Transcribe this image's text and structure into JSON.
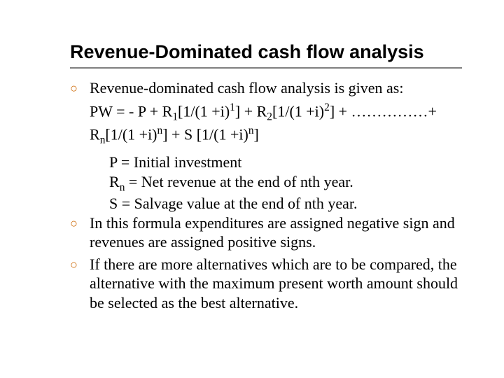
{
  "colors": {
    "bullet": "#cc6600",
    "rule": "#808080",
    "text": "#000000",
    "background": "#ffffff"
  },
  "typography": {
    "title_font": "Arial",
    "title_size_pt": 27,
    "title_weight": "bold",
    "body_font": "Times New Roman",
    "body_size_pt": 22
  },
  "title": "Revenue-Dominated cash flow analysis",
  "bullets": {
    "b1": "Revenue-dominated cash flow analysis is given as:",
    "b2": "In this formula expenditures are assigned negative sign and revenues are assigned positive signs.",
    "b3": "If there are more alternatives which are to be compared, the alternative with the maximum present worth amount should be selected as the best alternative."
  },
  "formula": {
    "pre_p": "PW = - P + R",
    "r1_sub": "1",
    "r1_bracket_open": "[1/(1 +i)",
    "r1_sup": "1",
    "r1_close_plus": "] + R",
    "r2_sub": "2",
    "r2_bracket_open": "[1/(1 +i)",
    "r2_sup": "2",
    "r2_close_dots": "] + ……………+ R",
    "rn_sub": "n",
    "rn_bracket_open": "[1/(1 +i)",
    "rn_sup": "n",
    "rn_close": "] + S [1/(1 +i)",
    "s_sup": "n",
    "tail": "]"
  },
  "definitions": {
    "p": "P = Initial investment",
    "rn_pre": "R",
    "rn_sub": "n",
    "rn_post": " = Net revenue at the end of nth year.",
    "s": "S = Salvage value at the end of nth year."
  }
}
